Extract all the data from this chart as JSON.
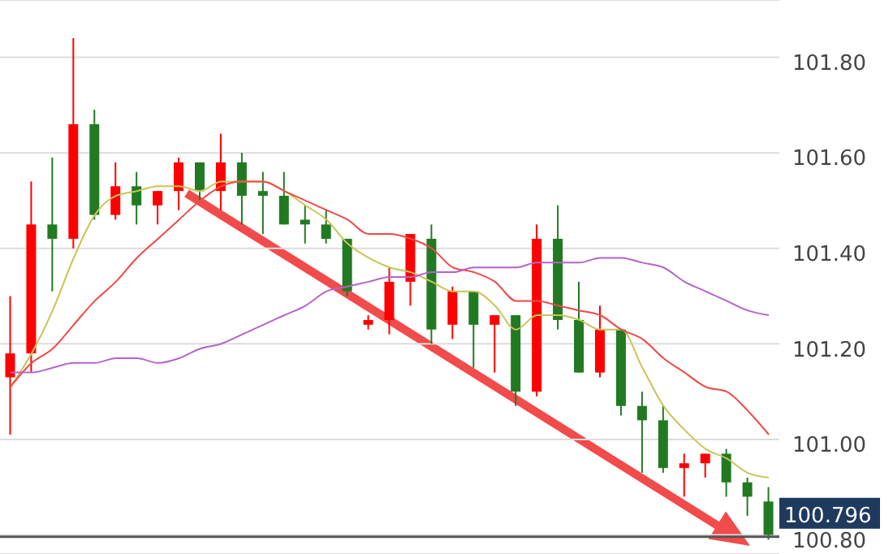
{
  "chart_data": {
    "type": "candlestick",
    "categories": [
      null,
      null,
      null,
      null,
      null,
      null,
      null,
      null,
      null,
      null,
      null,
      null,
      null,
      null,
      null,
      null,
      null,
      null,
      null,
      null,
      null,
      null,
      null,
      null,
      null,
      null,
      null,
      null,
      null,
      null,
      null,
      null,
      null,
      null,
      null,
      null,
      null
    ],
    "ohlc": [
      [
        101.13,
        101.3,
        101.01,
        101.18
      ],
      [
        101.18,
        101.54,
        101.14,
        101.45
      ],
      [
        101.45,
        101.59,
        101.31,
        101.42
      ],
      [
        101.42,
        101.84,
        101.4,
        101.66
      ],
      [
        101.66,
        101.69,
        101.46,
        101.47
      ],
      [
        101.47,
        101.58,
        101.46,
        101.53
      ],
      [
        101.53,
        101.56,
        101.45,
        101.49
      ],
      [
        101.49,
        101.52,
        101.45,
        101.52
      ],
      [
        101.52,
        101.59,
        101.48,
        101.58
      ],
      [
        101.58,
        101.58,
        101.5,
        101.52
      ],
      [
        101.52,
        101.64,
        101.48,
        101.58
      ],
      [
        101.58,
        101.6,
        101.45,
        101.51
      ],
      [
        101.52,
        101.56,
        101.43,
        101.51
      ],
      [
        101.51,
        101.56,
        101.45,
        101.45
      ],
      [
        101.46,
        101.49,
        101.41,
        101.45
      ],
      [
        101.45,
        101.48,
        101.41,
        101.42
      ],
      [
        101.42,
        101.42,
        101.3,
        101.31
      ],
      [
        101.24,
        101.26,
        101.23,
        101.25
      ],
      [
        101.25,
        101.36,
        101.22,
        101.33
      ],
      [
        101.33,
        101.43,
        101.28,
        101.43
      ],
      [
        101.42,
        101.45,
        101.2,
        101.23
      ],
      [
        101.24,
        101.32,
        101.21,
        101.31
      ],
      [
        101.31,
        101.31,
        101.15,
        101.24
      ],
      [
        101.24,
        101.26,
        101.14,
        101.26
      ],
      [
        101.26,
        101.26,
        101.07,
        101.1
      ],
      [
        101.1,
        101.45,
        101.09,
        101.42
      ],
      [
        101.42,
        101.49,
        101.23,
        101.25
      ],
      [
        101.25,
        101.33,
        101.14,
        101.14
      ],
      [
        101.14,
        101.28,
        101.13,
        101.23
      ],
      [
        101.23,
        101.23,
        101.05,
        101.07
      ],
      [
        101.07,
        101.1,
        100.93,
        101.04
      ],
      [
        101.04,
        101.07,
        100.93,
        100.94
      ],
      [
        100.94,
        100.97,
        100.88,
        100.95
      ],
      [
        100.95,
        100.97,
        100.92,
        100.97
      ],
      [
        100.97,
        100.98,
        100.88,
        100.91
      ],
      [
        100.91,
        100.92,
        100.84,
        100.88
      ],
      [
        100.87,
        100.9,
        100.79,
        100.8
      ]
    ],
    "colors": [
      "#ff0000",
      "#ff0000",
      "#217a21",
      "#ff0000",
      "#217a21",
      "#ff0000",
      "#217a21",
      "#ff0000",
      "#ff0000",
      "#217a21",
      "#ff0000",
      "#217a21",
      "#217a21",
      "#217a21",
      "#217a21",
      "#217a21",
      "#217a21",
      "#ff0000",
      "#ff0000",
      "#ff0000",
      "#217a21",
      "#ff0000",
      "#217a21",
      "#ff0000",
      "#217a21",
      "#ff0000",
      "#217a21",
      "#217a21",
      "#ff0000",
      "#217a21",
      "#217a21",
      "#217a21",
      "#ff0000",
      "#ff0000",
      "#217a21",
      "#217a21",
      "#217a21"
    ],
    "series": [
      {
        "type": "line",
        "color": "#c8c458",
        "values": [
          101.11,
          101.18,
          101.27,
          101.38,
          101.47,
          101.51,
          101.52,
          101.53,
          101.53,
          101.52,
          101.54,
          101.54,
          101.54,
          101.52,
          101.49,
          101.46,
          101.41,
          101.38,
          101.36,
          101.35,
          101.33,
          101.31,
          101.31,
          101.28,
          101.23,
          101.26,
          101.26,
          101.25,
          101.23,
          101.23,
          101.15,
          101.07,
          101.02,
          100.98,
          100.96,
          100.93,
          100.92
        ]
      },
      {
        "type": "line",
        "color": "#f04848",
        "values": [
          101.11,
          101.16,
          101.19,
          101.24,
          101.29,
          101.33,
          101.38,
          101.42,
          101.46,
          101.5,
          101.53,
          101.54,
          101.54,
          101.52,
          101.5,
          101.48,
          101.46,
          101.43,
          101.43,
          101.42,
          101.4,
          101.36,
          101.35,
          101.33,
          101.29,
          101.29,
          101.28,
          101.27,
          101.26,
          101.23,
          101.21,
          101.17,
          101.14,
          101.11,
          101.1,
          101.06,
          101.01
        ]
      },
      {
        "type": "line",
        "color": "#b464c8",
        "values": [
          101.14,
          101.14,
          101.15,
          101.16,
          101.16,
          101.17,
          101.17,
          101.16,
          101.17,
          101.19,
          101.2,
          101.22,
          101.24,
          101.26,
          101.28,
          101.31,
          101.32,
          101.33,
          101.34,
          101.34,
          101.35,
          101.35,
          101.36,
          101.36,
          101.36,
          101.37,
          101.37,
          101.37,
          101.38,
          101.38,
          101.37,
          101.36,
          101.33,
          101.31,
          101.29,
          101.27,
          101.26
        ]
      }
    ],
    "ylim": [
      100.76,
      101.92
    ],
    "yticks": [
      {
        "value": 100.8,
        "label": "100.80"
      },
      {
        "value": 101,
        "label": "101.00"
      },
      {
        "value": 101.2,
        "label": "101.20"
      },
      {
        "value": 101.4,
        "label": "101.40"
      },
      {
        "value": 101.6,
        "label": "101.60"
      },
      {
        "value": 101.8,
        "label": "101.80"
      }
    ],
    "grid": "y",
    "tick_labels": "y",
    "marker": "none",
    "line_style": "solid",
    "ref_lines": [
      {
        "axis": "y",
        "value": 100.796,
        "label": "100.796",
        "color": "#555555"
      }
    ]
  }
}
